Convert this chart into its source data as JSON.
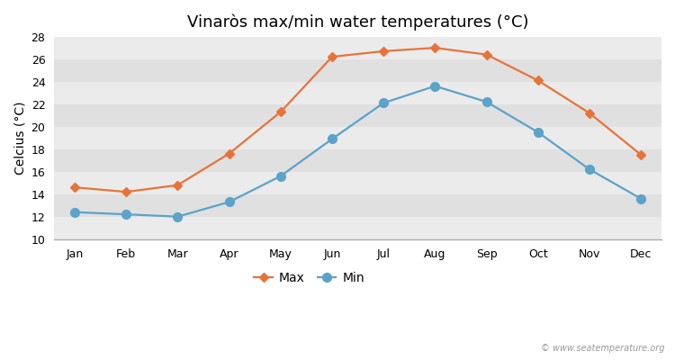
{
  "title": "Vinaròs max/min water temperatures (°C)",
  "xlabel_months": [
    "Jan",
    "Feb",
    "Mar",
    "Apr",
    "May",
    "Jun",
    "Jul",
    "Aug",
    "Sep",
    "Oct",
    "Nov",
    "Dec"
  ],
  "max_values": [
    14.6,
    14.2,
    14.8,
    17.6,
    21.3,
    26.2,
    26.7,
    27.0,
    26.4,
    24.1,
    21.2,
    17.5
  ],
  "min_values": [
    12.4,
    12.2,
    12.0,
    13.3,
    15.6,
    18.9,
    22.1,
    23.6,
    22.2,
    19.5,
    16.2,
    13.6
  ],
  "max_color": "#e8733a",
  "min_color": "#5ba3c9",
  "figure_bg_color": "#ffffff",
  "band_light": "#ebebeb",
  "band_dark": "#e0e0e0",
  "ylabel": "Celcius (°C)",
  "ylim": [
    10,
    28
  ],
  "yticks": [
    10,
    12,
    14,
    16,
    18,
    20,
    22,
    24,
    26,
    28
  ],
  "legend_max": "Max",
  "legend_min": "Min",
  "watermark": "© www.seatemperature.org",
  "title_fontsize": 13,
  "axis_fontsize": 10,
  "tick_fontsize": 9,
  "legend_fontsize": 10,
  "max_marker": "D",
  "min_marker": "o",
  "line_width": 1.6,
  "max_marker_size": 5,
  "min_marker_size": 7
}
